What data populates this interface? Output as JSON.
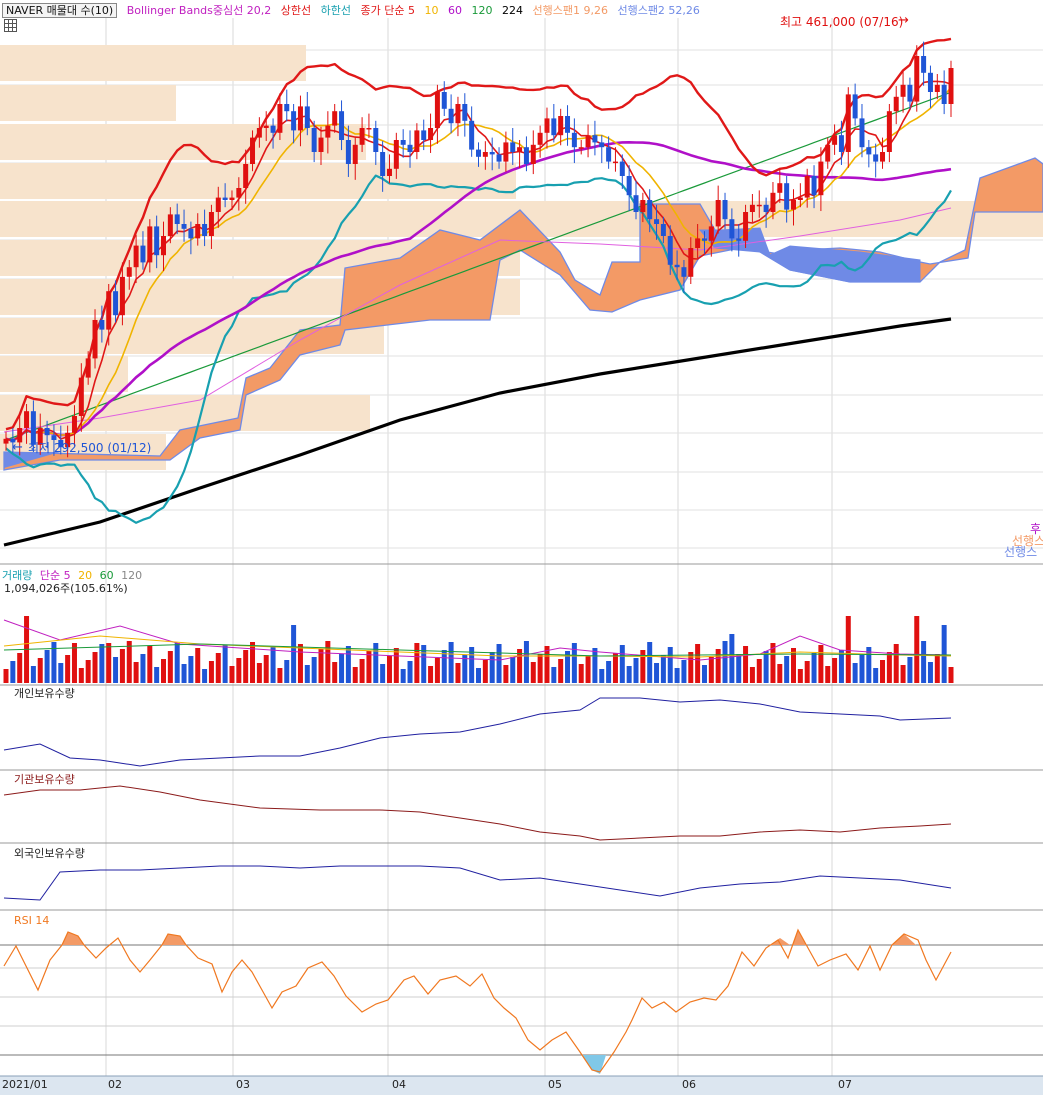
{
  "header": {
    "symbol_label": "NAVER 매물대 수(10)",
    "bb_label": "Bollinger Bands중심선 20,2",
    "bb_upper": "상한선",
    "bb_lower": "하한선",
    "ma_label": "종가 단순 5",
    "ma_10": "10",
    "ma_60": "60",
    "ma_120": "120",
    "ma_224": "224",
    "span1_label": "선행스팬1 9,26",
    "span2_label": "선행스팬2 52,26"
  },
  "annotations": {
    "high": "최고 461,000 (07/16)",
    "low": "최저 292,500 (01/12)",
    "right_cut_1": "후",
    "right_cut_2": "선행스",
    "right_cut_3": "선행스"
  },
  "volume": {
    "title": "거래량",
    "ma_label": "단순 5",
    "ma_20": "20",
    "ma_60": "60",
    "ma_120": "120",
    "value_text": "1,094,026주(105.61%)"
  },
  "panels": {
    "individual": "개인보유수량",
    "institution": "기관보유수량",
    "foreign": "외국인보유수량",
    "rsi": "RSI 14"
  },
  "x_axis": [
    "2021/01",
    "02",
    "03",
    "04",
    "05",
    "06",
    "07"
  ],
  "colors": {
    "up": "#e01010",
    "down": "#1f55d6",
    "bb": "#e01818",
    "ma5": "#e01818",
    "ma10": "#f0b400",
    "ma60": "#b010c8",
    "ma120": "#1a9a3a",
    "ma224": "#000000",
    "bb_lower": "#18a0b0",
    "cloud_up": "#f39a66",
    "cloud_down": "#6f8ae6",
    "profile": "#f7e3cc",
    "rsi": "#f07820"
  },
  "chart_data": {
    "type": "candlestick",
    "price_range": [
      250000,
      475000
    ],
    "high": 461000,
    "low": 292500,
    "closes": [
      300500,
      299000,
      305000,
      312000,
      298000,
      305000,
      302000,
      300000,
      297000,
      303000,
      310000,
      326000,
      334000,
      350000,
      346000,
      362000,
      352000,
      368000,
      372000,
      381000,
      374000,
      389000,
      377000,
      385000,
      394000,
      390000,
      388000,
      384000,
      390000,
      385000,
      395000,
      401000,
      400000,
      401000,
      405000,
      415000,
      426000,
      430000,
      431000,
      428000,
      440000,
      437000,
      429000,
      439000,
      430000,
      420000,
      426000,
      431000,
      437000,
      425000,
      415000,
      423000,
      430000,
      430000,
      420000,
      410000,
      413000,
      425000,
      423000,
      420000,
      429000,
      425000,
      430000,
      445000,
      438000,
      432000,
      440000,
      433000,
      421000,
      418000,
      420000,
      419000,
      416000,
      424000,
      420000,
      422000,
      415000,
      423000,
      428000,
      434000,
      427000,
      435000,
      428000,
      422000,
      422000,
      427000,
      424000,
      422000,
      416000,
      416000,
      410000,
      402000,
      395000,
      400000,
      392000,
      390000,
      385000,
      373000,
      372000,
      368000,
      380000,
      384000,
      383000,
      389000,
      400000,
      392000,
      384000,
      383000,
      395000,
      398000,
      398000,
      395000,
      403000,
      407000,
      396000,
      400000,
      401000,
      410000,
      402000,
      416000,
      423000,
      427000,
      420000,
      444000,
      434000,
      422000,
      419000,
      416000,
      420000,
      437000,
      443000,
      448000,
      441000,
      460000,
      453000,
      445000,
      448000,
      440000,
      455000
    ]
  }
}
